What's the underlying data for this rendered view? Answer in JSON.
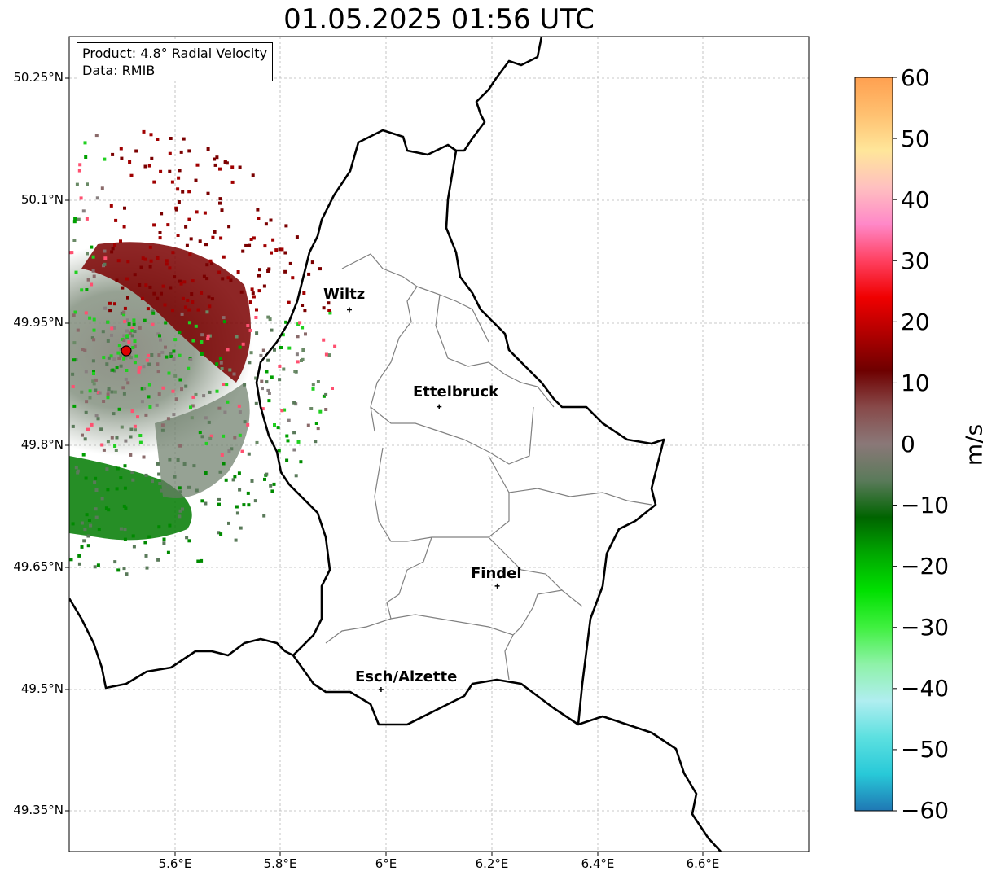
{
  "title": "01.05.2025 01:56 UTC",
  "info_box": {
    "product": "Product: 4.8° Radial Velocity",
    "data_source": "Data: RMIB"
  },
  "map": {
    "lon_range": [
      5.4,
      6.8
    ],
    "lat_range": [
      49.32,
      49.99
    ],
    "lat_ticks": [
      "50.25°N",
      "50.1°N",
      "49.95°N",
      "49.8°N",
      "49.65°N",
      "49.5°N",
      "49.35°N"
    ],
    "lon_ticks": [
      "5.6°E",
      "5.8°E",
      "6°E",
      "6.2°E",
      "6.4°E",
      "6.6°E"
    ],
    "grid": true,
    "radar_site": {
      "lon": 5.505,
      "lat": 49.914,
      "color": "#e00000"
    },
    "cities": [
      {
        "name": "Wiltz",
        "lon": 5.93,
        "lat": 49.966
      },
      {
        "name": "Ettelbruck",
        "lon": 6.1,
        "lat": 49.847
      },
      {
        "name": "Findel",
        "lon": 6.21,
        "lat": 49.627
      },
      {
        "name": "Esch/Alzette",
        "lon": 5.99,
        "lat": 49.5
      }
    ]
  },
  "colorbar": {
    "unit": "m/s",
    "range": [
      -60,
      60
    ],
    "tick_labels": [
      "60",
      "50",
      "40",
      "30",
      "20",
      "10",
      "0",
      "−10",
      "−20",
      "−30",
      "−40",
      "−50",
      "−60"
    ],
    "stops": [
      "#1f77b4",
      "#28c9d8",
      "#5ce0e0",
      "#b0eef0",
      "#8ef2a8",
      "#40f040",
      "#00e000",
      "#00a800",
      "#006400",
      "#5a7a5a",
      "#8a7878",
      "#884a4a",
      "#6e0000",
      "#b00000",
      "#f00000",
      "#ff4060",
      "#ff88c8",
      "#ffc0c0",
      "#ffe69a",
      "#ffc070",
      "#ffa050"
    ]
  }
}
